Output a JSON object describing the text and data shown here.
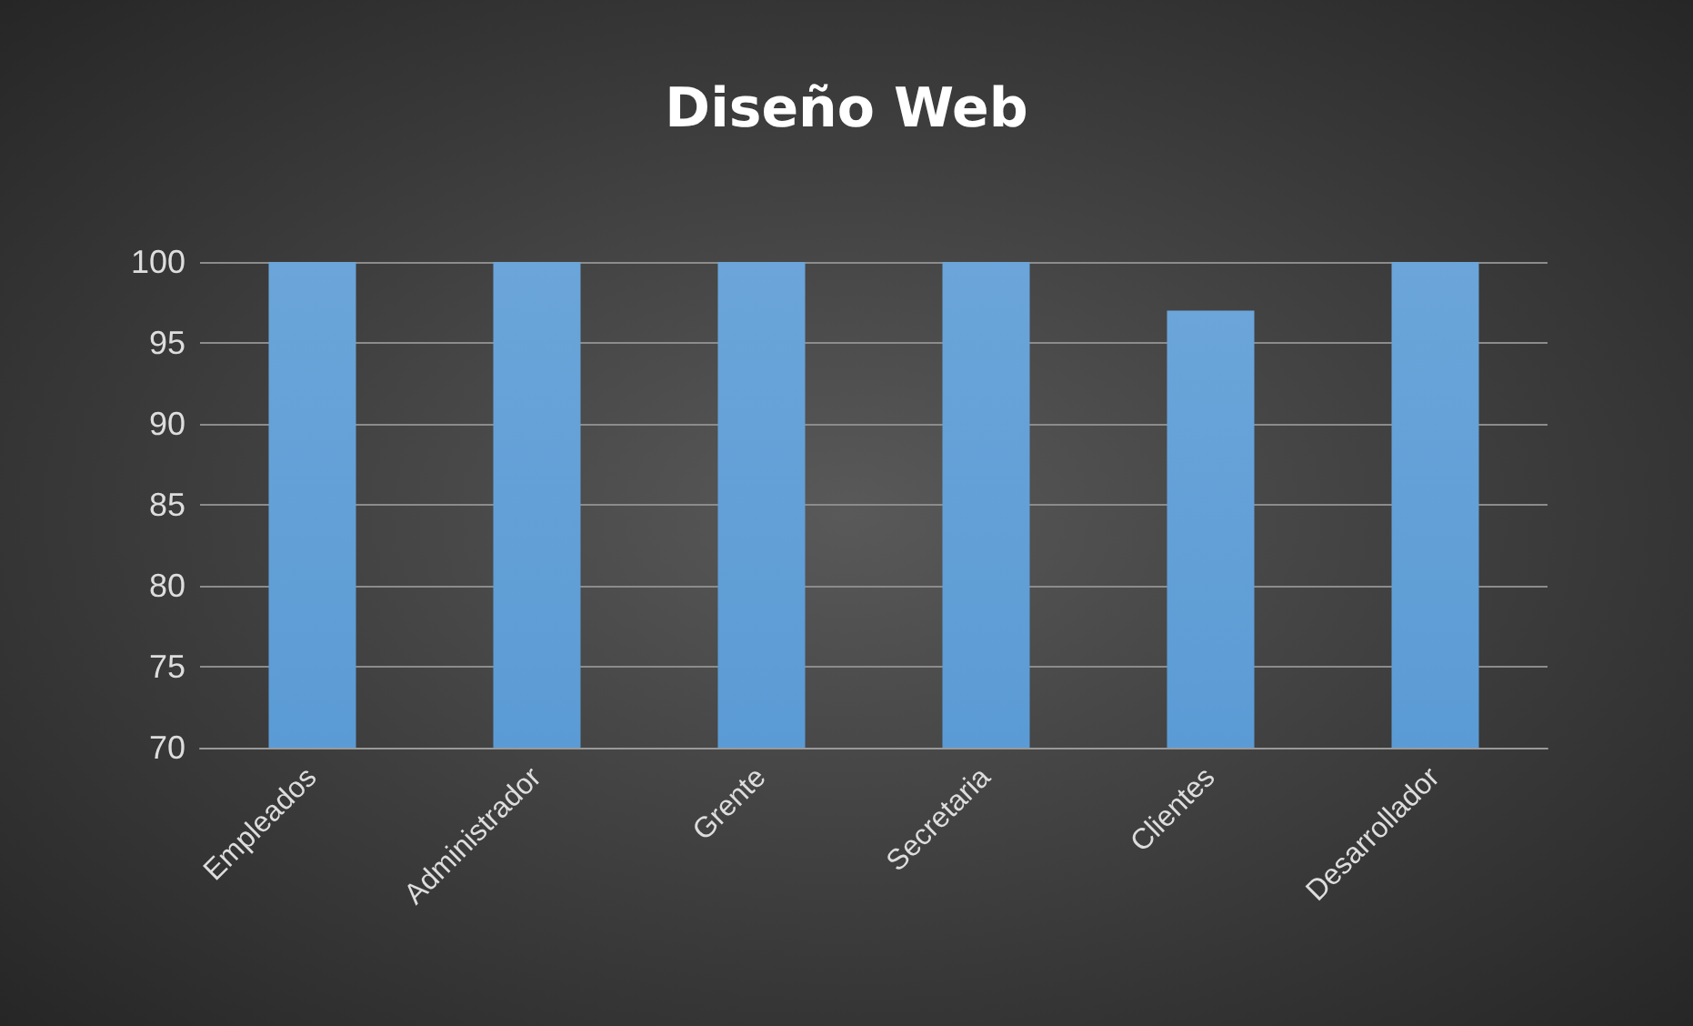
{
  "chart_data": {
    "type": "bar",
    "title": "Diseño Web",
    "categories": [
      "Empleados",
      "Administrador",
      "Grente",
      "Secretaria",
      "Clientes",
      "Desarrollador"
    ],
    "values": [
      100,
      100,
      100,
      100,
      97,
      100
    ],
    "color": "#5b9bd5",
    "ylim": [
      70,
      100
    ],
    "yticks": [
      70,
      75,
      80,
      85,
      90,
      95,
      100
    ],
    "grid": "y"
  }
}
